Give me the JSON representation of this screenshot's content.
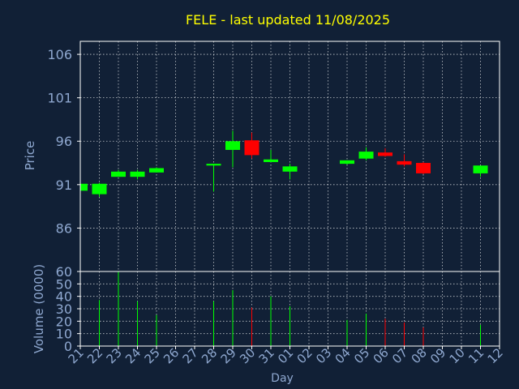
{
  "chart_data": {
    "title": "FELE - last updated 11/08/2025",
    "colors": {
      "background": "#112036",
      "title": "#ffff00",
      "axis_text": "#8fa8d0",
      "grid": "#ffffff",
      "up": "#00ff00",
      "down": "#ff0000"
    },
    "price_panel": {
      "type": "candlestick",
      "ylabel": "Price",
      "ylim": [
        81,
        107.5
      ],
      "yticks": [
        "106",
        "101",
        "96",
        "91",
        "86"
      ],
      "ytick_values": [
        106,
        101,
        96,
        91,
        86
      ],
      "grid": true
    },
    "volume_panel": {
      "type": "bar",
      "ylabel": "Volume (0000)",
      "ylim": [
        0,
        60
      ],
      "yticks": [
        "60",
        "50",
        "40",
        "30",
        "20",
        "10",
        "0"
      ],
      "ytick_values": [
        60,
        50,
        40,
        30,
        20,
        10,
        0
      ],
      "grid": true
    },
    "xlabel": "Day",
    "xticks": [
      "21",
      "22",
      "23",
      "24",
      "25",
      "26",
      "27",
      "28",
      "29",
      "30",
      "31",
      "01",
      "02",
      "03",
      "04",
      "05",
      "06",
      "07",
      "08",
      "09",
      "10",
      "11",
      "12"
    ],
    "candles": [
      {
        "slot": 0,
        "open": 90.3,
        "high": 91.1,
        "low": 90.3,
        "close": 91.1,
        "volume": 0
      },
      {
        "slot": 1,
        "open": 89.9,
        "high": 91.2,
        "low": 89.6,
        "close": 91.1,
        "volume": 37
      },
      {
        "slot": 2,
        "open": 91.9,
        "high": 92.7,
        "low": 91.9,
        "close": 92.5,
        "volume": 60
      },
      {
        "slot": 3,
        "open": 91.9,
        "high": 92.7,
        "low": 91.6,
        "close": 92.5,
        "volume": 36
      },
      {
        "slot": 4,
        "open": 92.4,
        "high": 93.0,
        "low": 92.4,
        "close": 92.9,
        "volume": 25
      },
      {
        "slot": 7,
        "open": 93.2,
        "high": 93.4,
        "low": 90.2,
        "close": 93.4,
        "volume": 36
      },
      {
        "slot": 8,
        "open": 95.0,
        "high": 97.2,
        "low": 93.0,
        "close": 96.0,
        "volume": 45
      },
      {
        "slot": 9,
        "open": 96.1,
        "high": 97.0,
        "low": 94.0,
        "close": 94.4,
        "volume": 31
      },
      {
        "slot": 10,
        "open": 93.6,
        "high": 95.0,
        "low": 93.6,
        "close": 93.9,
        "volume": 40
      },
      {
        "slot": 11,
        "open": 92.5,
        "high": 93.4,
        "low": 91.6,
        "close": 93.1,
        "volume": 32
      },
      {
        "slot": 14,
        "open": 93.4,
        "high": 93.8,
        "low": 93.3,
        "close": 93.8,
        "volume": 21
      },
      {
        "slot": 15,
        "open": 94.0,
        "high": 95.3,
        "low": 93.8,
        "close": 94.8,
        "volume": 26
      },
      {
        "slot": 16,
        "open": 94.7,
        "high": 95.2,
        "low": 94.2,
        "close": 94.3,
        "volume": 22
      },
      {
        "slot": 17,
        "open": 93.7,
        "high": 94.5,
        "low": 93.1,
        "close": 93.3,
        "volume": 19
      },
      {
        "slot": 18,
        "open": 93.5,
        "high": 93.6,
        "low": 92.2,
        "close": 92.3,
        "volume": 15
      },
      {
        "slot": 21,
        "open": 92.3,
        "high": 93.2,
        "low": 91.9,
        "close": 93.2,
        "volume": 17
      }
    ]
  }
}
